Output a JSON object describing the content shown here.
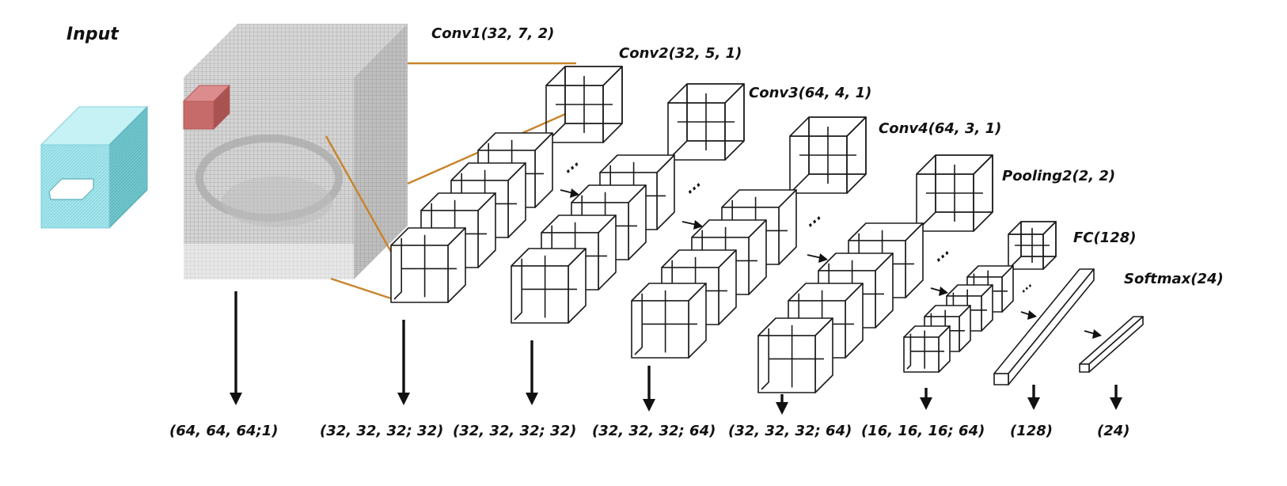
{
  "input_label": "Input",
  "layers": [
    {
      "id": "conv1",
      "label": "Conv1(32, 7, 2)"
    },
    {
      "id": "conv2",
      "label": "Conv2(32, 5, 1)"
    },
    {
      "id": "conv3",
      "label": "Conv3(64, 4, 1)"
    },
    {
      "id": "conv4",
      "label": "Conv4(64, 3, 1)"
    },
    {
      "id": "pool2",
      "label": "Pooling2(2, 2)"
    },
    {
      "id": "fc",
      "label": "FC(128)"
    },
    {
      "id": "softmax",
      "label": "Softmax(24)"
    }
  ],
  "shapes": [
    "(64, 64, 64;1)",
    "(32, 32, 32; 32)",
    "(32, 32, 32; 32)",
    "(32, 32, 32; 64)",
    "(32, 32, 32; 64)",
    "(16, 16, 16; 64)",
    "(128)",
    "(24)"
  ],
  "colors": {
    "input_cube": "#a6e6ee",
    "input_cube_side": "#6fc4cc",
    "volume_grey": "#c9c9c9",
    "kernel_red": "#c76a6a",
    "connector": "#c8842c"
  },
  "ellipsis": "..."
}
